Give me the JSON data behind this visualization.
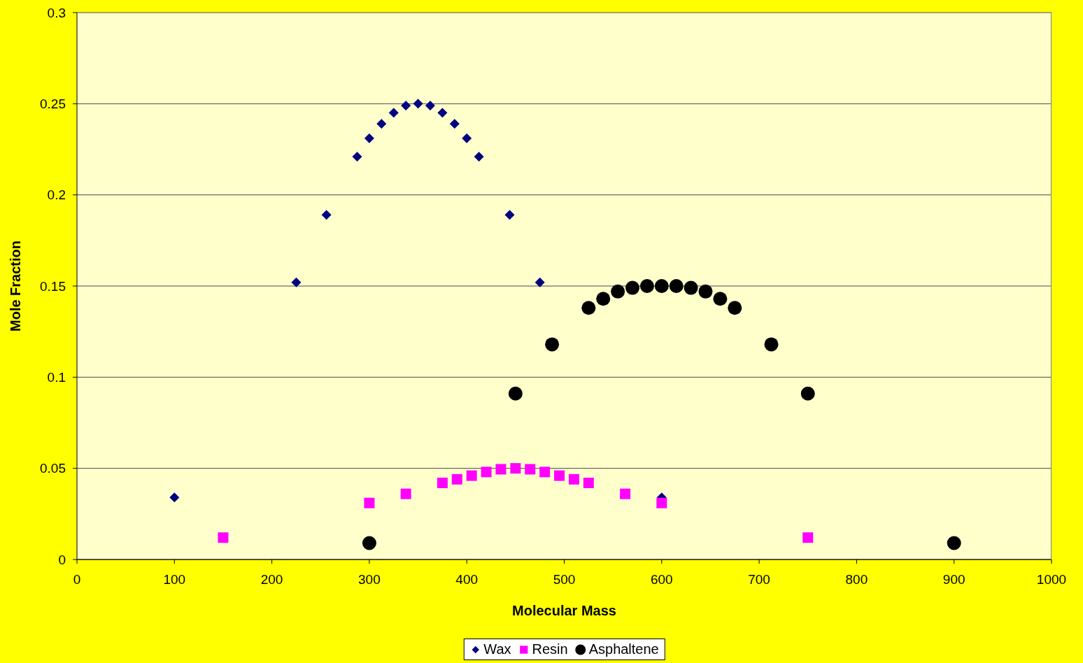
{
  "chart_data": {
    "type": "scatter",
    "xlabel": "Molecular Mass",
    "ylabel": "Mole Fraction",
    "xlim": [
      0,
      1000
    ],
    "xticks": [
      0,
      100,
      200,
      300,
      400,
      500,
      600,
      700,
      800,
      900,
      1000
    ],
    "ylim": [
      0,
      0.3
    ],
    "yticks": [
      0,
      0.05,
      0.1,
      0.15,
      0.2,
      0.25,
      0.3
    ],
    "grid": "y",
    "legend": "bottom",
    "series": [
      {
        "name": "Wax",
        "color": "#000080",
        "marker": "diamond",
        "x": [
          100,
          225,
          256,
          287.5,
          300,
          312.5,
          325,
          337.5,
          350,
          362.5,
          375,
          387.5,
          400,
          412.5,
          444,
          475,
          600
        ],
        "values": [
          0.034,
          0.152,
          0.189,
          0.221,
          0.231,
          0.239,
          0.245,
          0.249,
          0.25,
          0.249,
          0.245,
          0.239,
          0.231,
          0.221,
          0.189,
          0.152,
          0.034
        ]
      },
      {
        "name": "Resin",
        "color": "#ff00ff",
        "marker": "square",
        "x": [
          150,
          300,
          337.5,
          375,
          390,
          405,
          420,
          435,
          450,
          465,
          480,
          495,
          510,
          525,
          562.5,
          600,
          750
        ],
        "values": [
          0.012,
          0.031,
          0.036,
          0.042,
          0.044,
          0.046,
          0.048,
          0.0495,
          0.05,
          0.0495,
          0.048,
          0.046,
          0.044,
          0.042,
          0.036,
          0.031,
          0.012
        ]
      },
      {
        "name": "Asphaltene",
        "color": "#000000",
        "marker": "circle",
        "x": [
          300,
          450,
          487.5,
          525,
          540,
          555,
          570,
          585,
          600,
          615,
          630,
          645,
          660,
          675,
          712.5,
          750,
          900
        ],
        "values": [
          0.009,
          0.091,
          0.118,
          0.138,
          0.143,
          0.147,
          0.149,
          0.15,
          0.15,
          0.15,
          0.149,
          0.147,
          0.143,
          0.138,
          0.118,
          0.091,
          0.009
        ]
      }
    ]
  }
}
